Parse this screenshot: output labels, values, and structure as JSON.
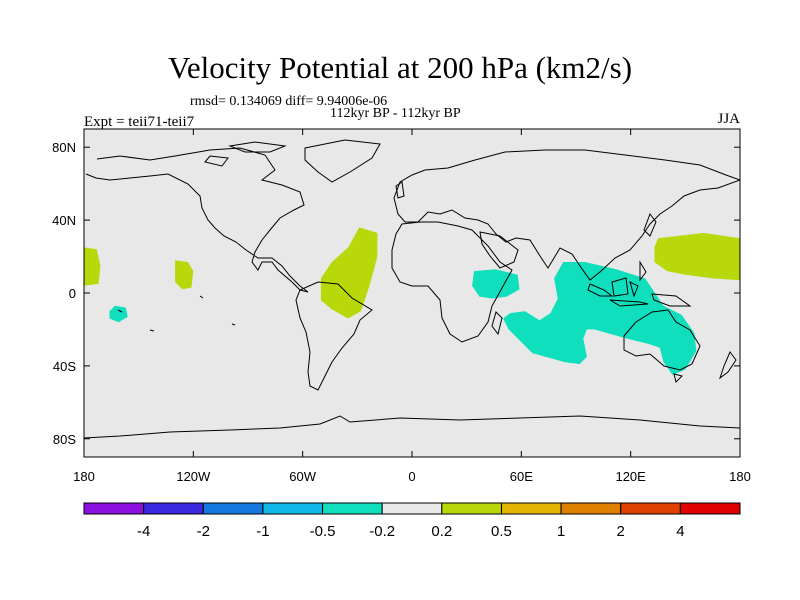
{
  "header": {
    "title": "Velocity Potential at 200 hPa (km2/s)",
    "stats": "rmsd= 0.134069 diff= 9.94006e-06",
    "period": "112kyr BP - 112kyr BP",
    "experiment": "Expt = teii71-teii7",
    "season": "JJA"
  },
  "colors": {
    "background_fill": "#e8e8e8",
    "positive_fill": "#b8d80a",
    "negative_fill": "#10dfbd",
    "coastline": "#000000"
  },
  "colorbar": {
    "colors": [
      "#8c10e0",
      "#3b28e0",
      "#1478e0",
      "#10b8e8",
      "#10dfbd",
      "#e8e8e8",
      "#b8d80a",
      "#e0b400",
      "#e08000",
      "#e04000",
      "#e00000"
    ],
    "labels": [
      "-4",
      "-2",
      "-1",
      "-0.5",
      "-0.2",
      "0.2",
      "0.5",
      "1",
      "2",
      "4"
    ]
  },
  "chart_data": {
    "type": "map",
    "projection": "cylindrical-equidistant",
    "xlim": [
      -180,
      180
    ],
    "ylim": [
      -90,
      90
    ],
    "x_ticks": [
      {
        "value": -180,
        "label": "180"
      },
      {
        "value": -120,
        "label": "120W"
      },
      {
        "value": -60,
        "label": "60W"
      },
      {
        "value": 0,
        "label": "0"
      },
      {
        "value": 60,
        "label": "60E"
      },
      {
        "value": 120,
        "label": "120E"
      },
      {
        "value": 180,
        "label": "180"
      }
    ],
    "y_ticks": [
      {
        "value": 80,
        "label": "80N"
      },
      {
        "value": 40,
        "label": "40N"
      },
      {
        "value": 0,
        "label": "0"
      },
      {
        "value": -40,
        "label": "40S"
      },
      {
        "value": -80,
        "label": "80S"
      }
    ],
    "regions": [
      {
        "sign": "positive",
        "lonlat": [
          [
            -180,
            25
          ],
          [
            -173,
            24
          ],
          [
            -171,
            15
          ],
          [
            -172,
            5
          ],
          [
            -180,
            4
          ]
        ]
      },
      {
        "sign": "positive",
        "lonlat": [
          [
            -130,
            18
          ],
          [
            -123,
            17
          ],
          [
            -120,
            12
          ],
          [
            -121,
            3
          ],
          [
            -126,
            2
          ],
          [
            -130,
            6
          ]
        ]
      },
      {
        "sign": "positive",
        "lonlat": [
          [
            -29,
            36
          ],
          [
            -19,
            33
          ],
          [
            -19,
            20
          ],
          [
            -23,
            5
          ],
          [
            -28,
            -10
          ],
          [
            -35,
            -14
          ],
          [
            -44,
            -9
          ],
          [
            -50,
            -4
          ],
          [
            -50,
            8
          ],
          [
            -44,
            17
          ],
          [
            -35,
            25
          ]
        ]
      },
      {
        "sign": "positive",
        "lonlat": [
          [
            135,
            30
          ],
          [
            160,
            33
          ],
          [
            180,
            30
          ],
          [
            180,
            7
          ],
          [
            165,
            8
          ],
          [
            150,
            10
          ],
          [
            140,
            12
          ],
          [
            133,
            17
          ],
          [
            133,
            25
          ]
        ]
      },
      {
        "sign": "negative",
        "lonlat": [
          [
            -163,
            -7
          ],
          [
            -157,
            -8
          ],
          [
            -156,
            -13
          ],
          [
            -161,
            -16
          ],
          [
            -166,
            -14
          ],
          [
            -166,
            -10
          ]
        ]
      },
      {
        "sign": "negative",
        "lonlat": [
          [
            34,
            12
          ],
          [
            46,
            13
          ],
          [
            58,
            10
          ],
          [
            59,
            2
          ],
          [
            52,
            -2
          ],
          [
            44,
            -3
          ],
          [
            37,
            -2
          ],
          [
            33,
            4
          ]
        ]
      },
      {
        "sign": "negative",
        "lonlat": [
          [
            83,
            17
          ],
          [
            95,
            17
          ],
          [
            112,
            13
          ],
          [
            128,
            8
          ],
          [
            138,
            -7
          ],
          [
            148,
            -12
          ],
          [
            155,
            -22
          ],
          [
            156,
            -32
          ],
          [
            150,
            -42
          ],
          [
            143,
            -45
          ],
          [
            138,
            -38
          ],
          [
            136,
            -30
          ],
          [
            130,
            -28
          ],
          [
            118,
            -25
          ],
          [
            100,
            -20
          ],
          [
            96,
            -20
          ],
          [
            94,
            -25
          ],
          [
            96,
            -35
          ],
          [
            92,
            -39
          ],
          [
            84,
            -38
          ],
          [
            66,
            -33
          ],
          [
            53,
            -20
          ],
          [
            50,
            -14
          ],
          [
            54,
            -11
          ],
          [
            62,
            -10
          ],
          [
            70,
            -15
          ],
          [
            76,
            -11
          ],
          [
            80,
            -3
          ],
          [
            78,
            8
          ]
        ]
      }
    ]
  }
}
